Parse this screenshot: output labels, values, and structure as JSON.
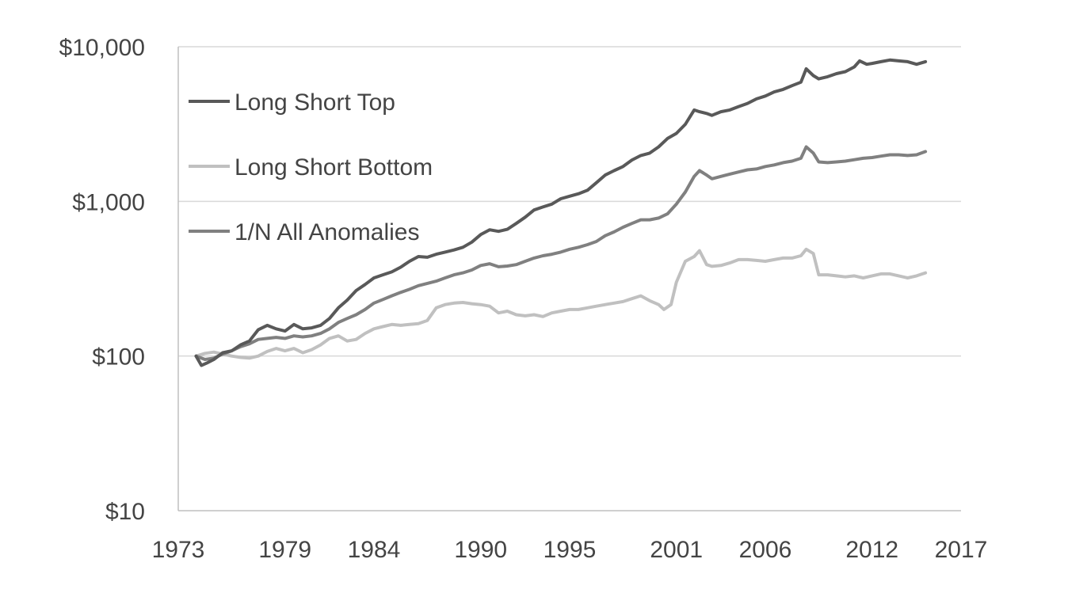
{
  "chart_data": {
    "type": "line",
    "title": "",
    "xlabel": "",
    "ylabel": "",
    "y_scale": "log",
    "ylim": [
      10,
      10000
    ],
    "xlim": [
      1973,
      2017
    ],
    "grid": "horizontal",
    "legend_position": "top-left",
    "y_ticks": [
      {
        "value": 10000,
        "label": "$10,000"
      },
      {
        "value": 1000,
        "label": "$1,000"
      },
      {
        "value": 100,
        "label": "$100"
      },
      {
        "value": 10,
        "label": "$10"
      }
    ],
    "x_ticks": [
      {
        "value": 1973,
        "label": "1973"
      },
      {
        "value": 1979,
        "label": "1979"
      },
      {
        "value": 1984,
        "label": "1984"
      },
      {
        "value": 1990,
        "label": "1990"
      },
      {
        "value": 1995,
        "label": "1995"
      },
      {
        "value": 2001,
        "label": "2001"
      },
      {
        "value": 2006,
        "label": "2006"
      },
      {
        "value": 2012,
        "label": "2012"
      },
      {
        "value": 2017,
        "label": "2017"
      }
    ],
    "series": [
      {
        "name": "Long Short Top",
        "color": "#595959",
        "x": [
          1974.0,
          1974.3,
          1974.6,
          1975.0,
          1975.5,
          1976.0,
          1976.5,
          1977.0,
          1977.5,
          1978.0,
          1978.5,
          1979.0,
          1979.5,
          1980.0,
          1980.5,
          1981.0,
          1981.5,
          1982.0,
          1982.5,
          1983.0,
          1983.5,
          1984.0,
          1984.5,
          1985.0,
          1985.5,
          1986.0,
          1986.5,
          1987.0,
          1987.5,
          1988.0,
          1988.5,
          1989.0,
          1989.5,
          1990.0,
          1990.5,
          1991.0,
          1991.5,
          1992.0,
          1992.5,
          1993.0,
          1993.5,
          1994.0,
          1994.5,
          1995.0,
          1995.5,
          1996.0,
          1996.5,
          1997.0,
          1997.5,
          1998.0,
          1998.5,
          1999.0,
          1999.5,
          2000.0,
          2000.5,
          2001.0,
          2001.5,
          2002.0,
          2002.3,
          2002.7,
          2003.0,
          2003.5,
          2004.0,
          2004.5,
          2005.0,
          2005.5,
          2006.0,
          2006.5,
          2007.0,
          2007.5,
          2008.0,
          2008.3,
          2008.7,
          2009.0,
          2009.5,
          2010.0,
          2010.5,
          2011.0,
          2011.3,
          2011.7,
          2012.0,
          2012.5,
          2013.0,
          2013.5,
          2014.0,
          2014.5,
          2015.0
        ],
        "values": [
          100,
          87,
          90,
          95,
          105,
          108,
          118,
          125,
          148,
          158,
          150,
          145,
          160,
          150,
          152,
          158,
          175,
          205,
          230,
          265,
          290,
          320,
          335,
          350,
          375,
          410,
          440,
          435,
          455,
          470,
          485,
          505,
          545,
          610,
          655,
          640,
          660,
          720,
          790,
          880,
          920,
          960,
          1040,
          1080,
          1120,
          1180,
          1320,
          1480,
          1580,
          1680,
          1850,
          1980,
          2050,
          2250,
          2550,
          2750,
          3150,
          3900,
          3800,
          3700,
          3600,
          3800,
          3900,
          4100,
          4300,
          4600,
          4800,
          5100,
          5300,
          5600,
          5900,
          7200,
          6500,
          6200,
          6400,
          6700,
          6900,
          7400,
          8100,
          7700,
          7800,
          8000,
          8200,
          8100,
          8000,
          7700,
          8000
        ]
      },
      {
        "name": "Long Short Bottom",
        "color": "#c0c0c0",
        "x": [
          1974.0,
          1974.5,
          1975.0,
          1975.5,
          1976.0,
          1976.5,
          1977.0,
          1977.5,
          1978.0,
          1978.5,
          1979.0,
          1979.5,
          1980.0,
          1980.5,
          1981.0,
          1981.5,
          1982.0,
          1982.5,
          1983.0,
          1983.5,
          1984.0,
          1984.5,
          1985.0,
          1985.5,
          1986.0,
          1986.5,
          1987.0,
          1987.5,
          1988.0,
          1988.5,
          1989.0,
          1989.5,
          1990.0,
          1990.5,
          1991.0,
          1991.5,
          1992.0,
          1992.5,
          1993.0,
          1993.5,
          1994.0,
          1994.5,
          1995.0,
          1995.5,
          1996.0,
          1996.5,
          1997.0,
          1997.5,
          1998.0,
          1998.5,
          1999.0,
          1999.5,
          2000.0,
          2000.3,
          2000.7,
          2001.0,
          2001.5,
          2002.0,
          2002.3,
          2002.7,
          2003.0,
          2003.5,
          2004.0,
          2004.5,
          2005.0,
          2005.5,
          2006.0,
          2006.5,
          2007.0,
          2007.5,
          2008.0,
          2008.3,
          2008.7,
          2009.0,
          2009.5,
          2010.0,
          2010.5,
          2011.0,
          2011.5,
          2012.0,
          2012.5,
          2013.0,
          2013.5,
          2014.0,
          2014.5,
          2015.0
        ],
        "values": [
          100,
          104,
          106,
          103,
          100,
          98,
          97,
          100,
          107,
          112,
          108,
          112,
          105,
          110,
          118,
          130,
          135,
          125,
          128,
          140,
          150,
          155,
          160,
          158,
          160,
          162,
          170,
          205,
          215,
          220,
          222,
          218,
          215,
          210,
          190,
          195,
          185,
          182,
          185,
          180,
          190,
          195,
          200,
          200,
          205,
          210,
          215,
          220,
          225,
          235,
          245,
          228,
          215,
          200,
          215,
          300,
          410,
          440,
          480,
          390,
          380,
          385,
          400,
          420,
          420,
          415,
          410,
          420,
          430,
          430,
          445,
          490,
          460,
          335,
          335,
          330,
          325,
          330,
          320,
          330,
          340,
          340,
          330,
          320,
          330,
          345
        ]
      },
      {
        "name": "1/N All Anomalies",
        "color": "#808080",
        "x": [
          1974.0,
          1974.5,
          1975.0,
          1975.5,
          1976.0,
          1976.5,
          1977.0,
          1977.5,
          1978.0,
          1978.5,
          1979.0,
          1979.5,
          1980.0,
          1980.5,
          1981.0,
          1981.5,
          1982.0,
          1982.5,
          1983.0,
          1983.5,
          1984.0,
          1984.5,
          1985.0,
          1985.5,
          1986.0,
          1986.5,
          1987.0,
          1987.5,
          1988.0,
          1988.5,
          1989.0,
          1989.5,
          1990.0,
          1990.5,
          1991.0,
          1991.5,
          1992.0,
          1992.5,
          1993.0,
          1993.5,
          1994.0,
          1994.5,
          1995.0,
          1995.5,
          1996.0,
          1996.5,
          1997.0,
          1997.5,
          1998.0,
          1998.5,
          1999.0,
          1999.5,
          2000.0,
          2000.5,
          2001.0,
          2001.5,
          2002.0,
          2002.3,
          2002.7,
          2003.0,
          2003.5,
          2004.0,
          2004.5,
          2005.0,
          2005.5,
          2006.0,
          2006.5,
          2007.0,
          2007.5,
          2008.0,
          2008.3,
          2008.7,
          2009.0,
          2009.5,
          2010.0,
          2010.5,
          2011.0,
          2011.5,
          2012.0,
          2012.5,
          2013.0,
          2013.5,
          2014.0,
          2014.5,
          2015.0
        ],
        "values": [
          100,
          95,
          97,
          103,
          108,
          115,
          120,
          128,
          130,
          132,
          130,
          135,
          133,
          135,
          140,
          150,
          165,
          175,
          185,
          200,
          220,
          232,
          245,
          258,
          270,
          285,
          295,
          305,
          320,
          335,
          345,
          360,
          385,
          395,
          378,
          382,
          390,
          410,
          430,
          445,
          455,
          470,
          490,
          505,
          525,
          550,
          600,
          635,
          680,
          720,
          760,
          760,
          780,
          830,
          960,
          1150,
          1450,
          1580,
          1480,
          1400,
          1450,
          1500,
          1550,
          1600,
          1620,
          1680,
          1720,
          1780,
          1820,
          1900,
          2250,
          2050,
          1800,
          1780,
          1800,
          1820,
          1860,
          1900,
          1920,
          1960,
          2000,
          2000,
          1980,
          2000,
          2100
        ]
      }
    ]
  }
}
